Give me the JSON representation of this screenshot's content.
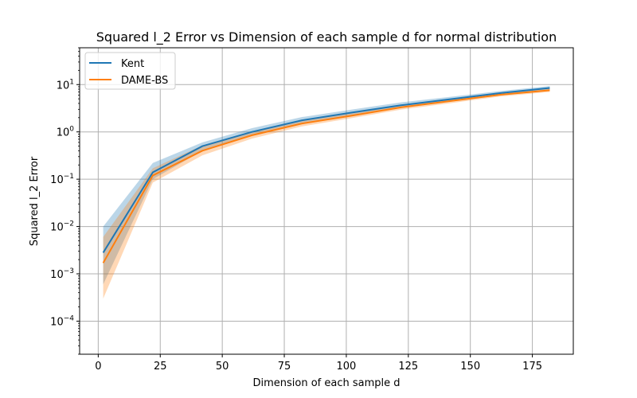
{
  "chart_data": {
    "type": "line",
    "title": "Squared l_2 Error vs Dimension of each sample d for normal distribution",
    "xlabel": "Dimension of each sample d",
    "ylabel": "Squared l_2 Error",
    "yscale": "log",
    "xlim": [
      -7.5,
      191.5
    ],
    "ylim": [
      2e-05,
      60
    ],
    "grid": true,
    "legend_position": "top-left",
    "x_ticks": [
      0,
      25,
      50,
      75,
      100,
      125,
      150,
      175
    ],
    "x_tick_labels": [
      "0",
      "25",
      "50",
      "75",
      "100",
      "125",
      "150",
      "175"
    ],
    "y_ticks": [
      0.0001,
      0.001,
      0.01,
      0.1,
      1,
      10
    ],
    "y_tick_labels": [
      "10",
      "10",
      "10",
      "10",
      "10",
      "10"
    ],
    "y_tick_exponents": [
      "−4",
      "−3",
      "−2",
      "−1",
      "0",
      "1"
    ],
    "x": [
      2,
      22,
      42,
      62,
      82,
      102,
      122,
      142,
      162,
      182
    ],
    "series": [
      {
        "name": "Kent",
        "color": "#1f77b4",
        "values": [
          0.0028,
          0.14,
          0.5,
          1.0,
          1.75,
          2.55,
          3.65,
          4.9,
          6.6,
          8.5
        ],
        "lower": [
          0.0006,
          0.1,
          0.4,
          0.85,
          1.5,
          2.25,
          3.25,
          4.45,
          6.0,
          7.8
        ],
        "upper": [
          0.01,
          0.22,
          0.6,
          1.2,
          2.05,
          2.95,
          4.2,
          5.5,
          7.3,
          9.3
        ]
      },
      {
        "name": "DAME-BS",
        "color": "#ff7f0e",
        "values": [
          0.0017,
          0.12,
          0.4,
          0.85,
          1.5,
          2.2,
          3.3,
          4.5,
          6.1,
          7.6
        ],
        "lower": [
          0.0003,
          0.085,
          0.32,
          0.72,
          1.3,
          1.95,
          2.95,
          4.05,
          5.6,
          7.0
        ],
        "upper": [
          0.006,
          0.17,
          0.52,
          1.0,
          1.75,
          2.55,
          3.75,
          5.0,
          6.7,
          8.3
        ]
      }
    ]
  }
}
